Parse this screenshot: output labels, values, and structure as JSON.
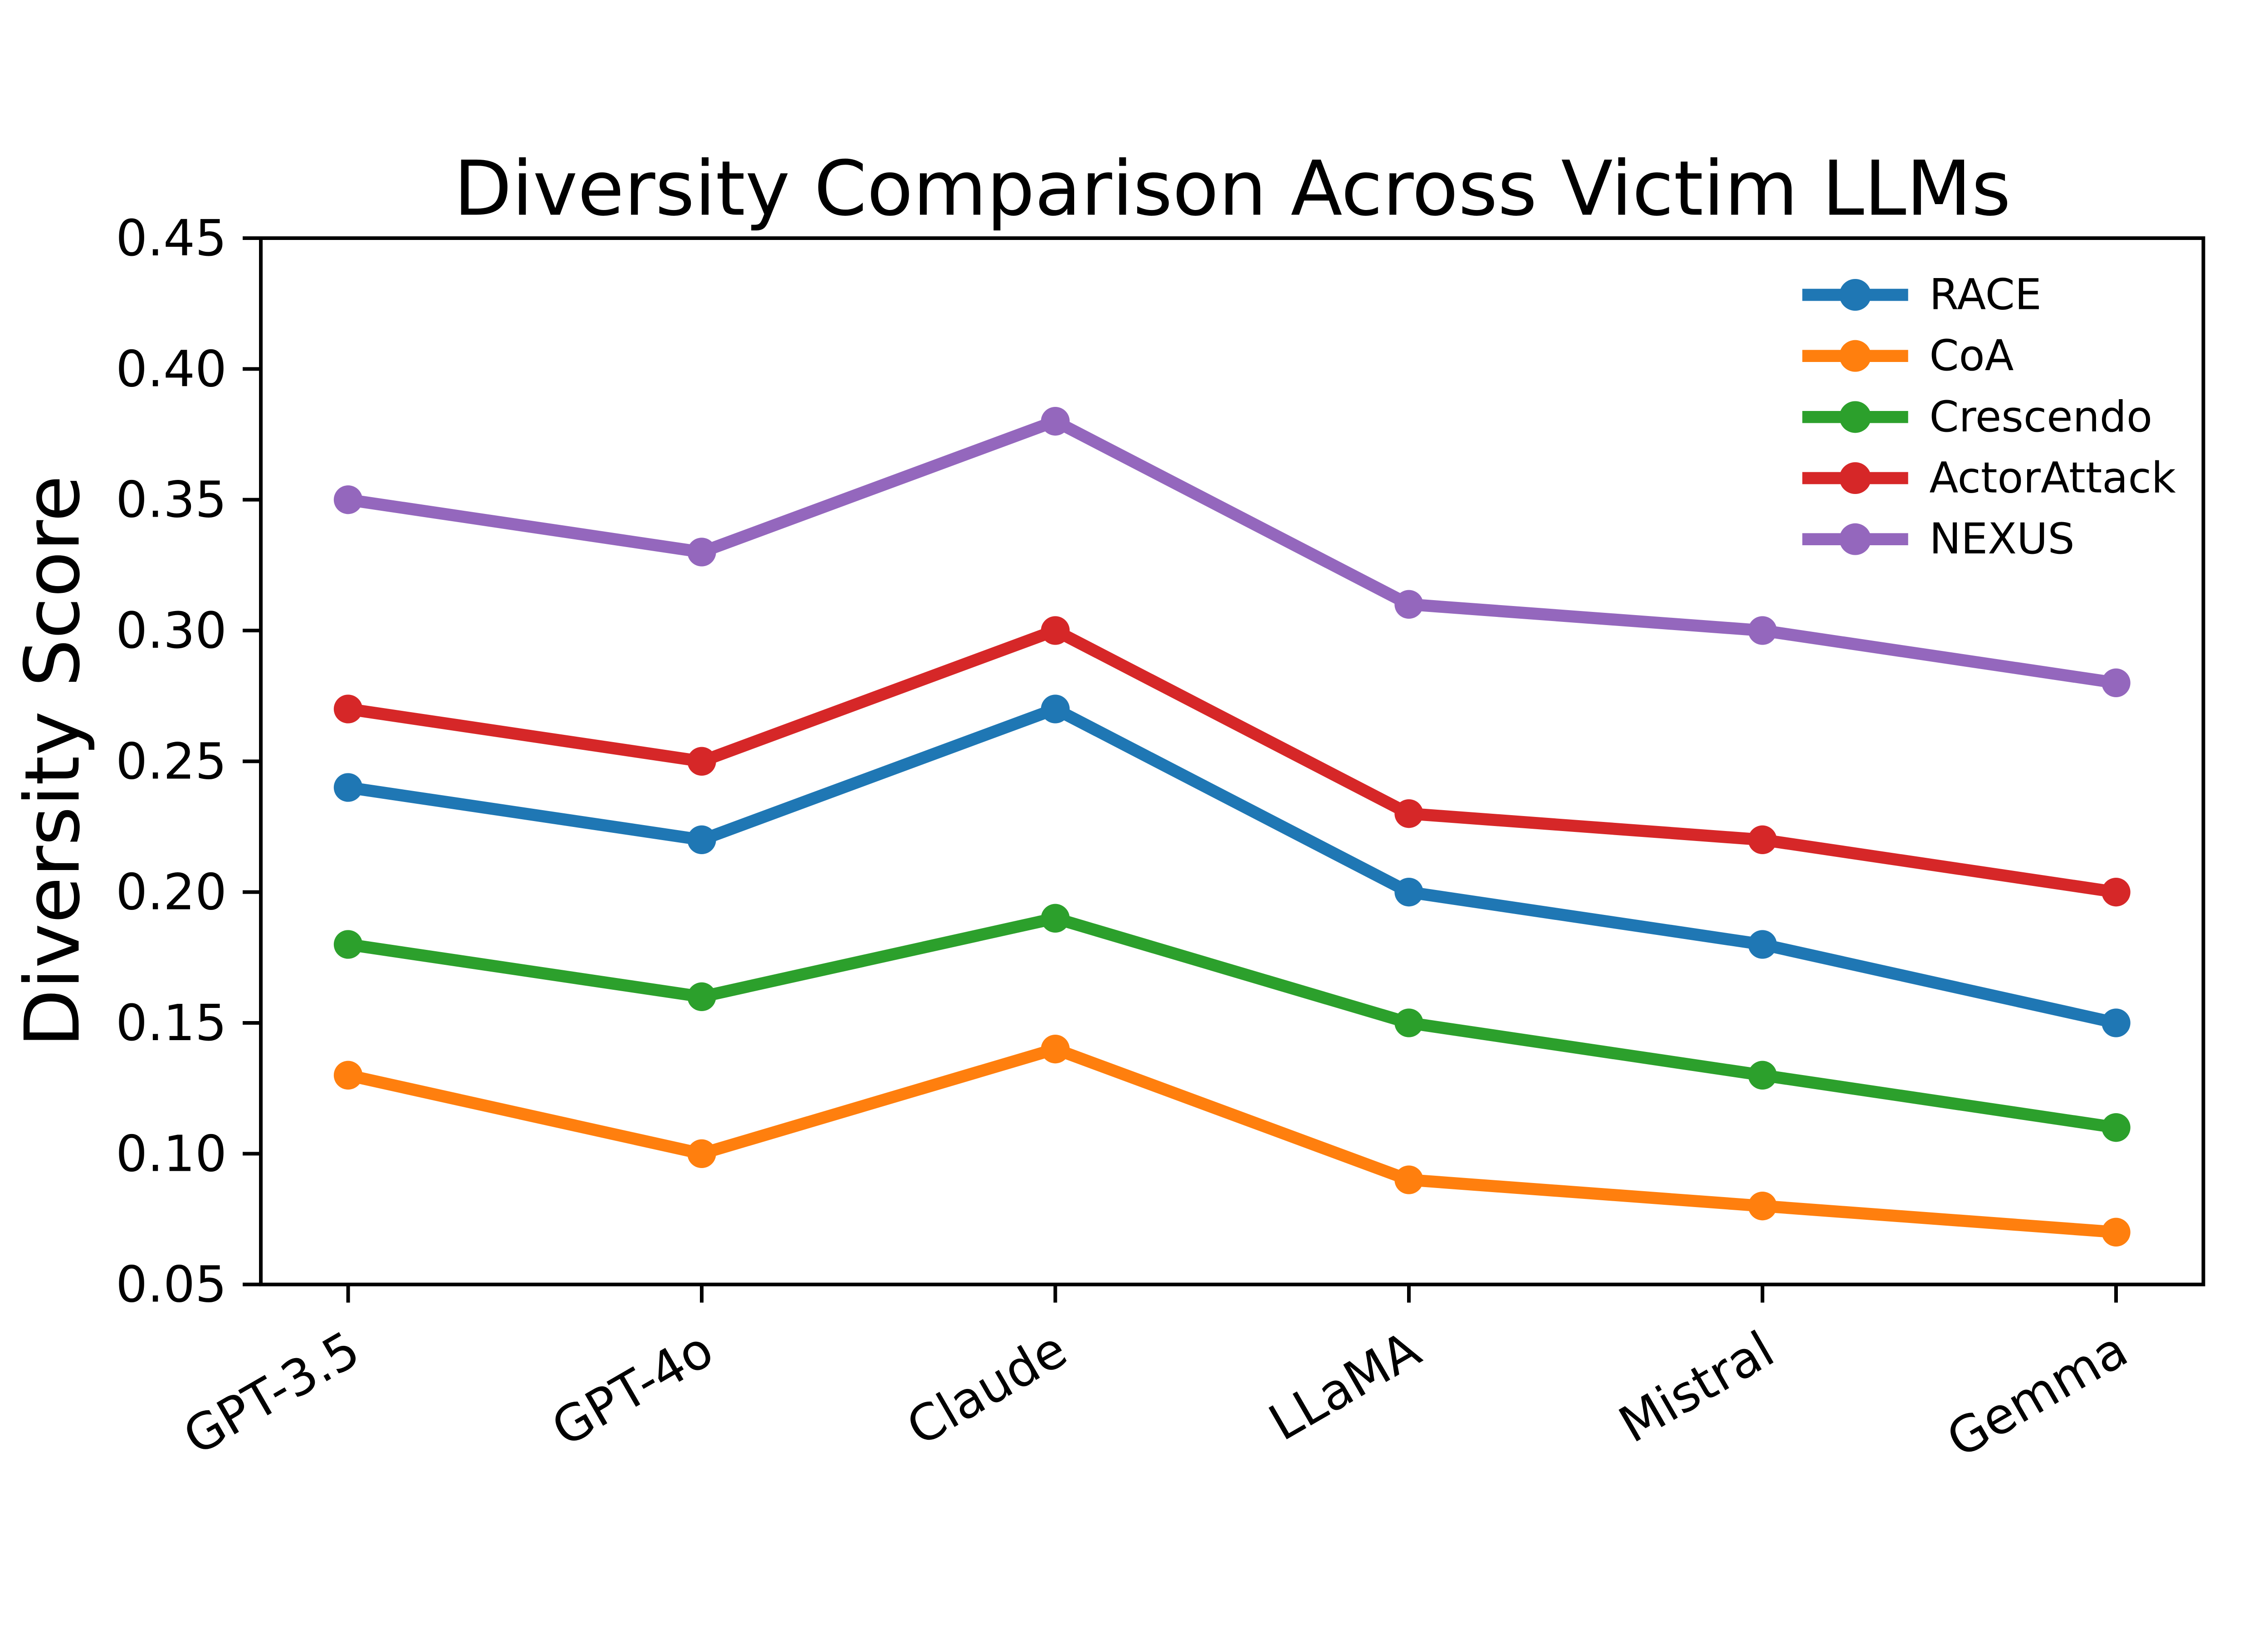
{
  "figure": {
    "background": "#ffffff",
    "text_color": "#000000"
  },
  "chart_data": {
    "type": "line",
    "title": "Diversity Comparison Across Victim LLMs",
    "xlabel": "",
    "ylabel": "Diversity Score",
    "categories": [
      "GPT-3.5",
      "GPT-4o",
      "Claude",
      "LLaMA",
      "Mistral",
      "Gemma"
    ],
    "series": [
      {
        "name": "RACE",
        "color": "#1f77b4",
        "values": [
          0.24,
          0.22,
          0.27,
          0.2,
          0.18,
          0.15
        ]
      },
      {
        "name": "CoA",
        "color": "#ff7f0e",
        "values": [
          0.13,
          0.1,
          0.14,
          0.09,
          0.08,
          0.07
        ]
      },
      {
        "name": "Crescendo",
        "color": "#2ca02c",
        "values": [
          0.18,
          0.16,
          0.19,
          0.15,
          0.13,
          0.11
        ]
      },
      {
        "name": "ActorAttack",
        "color": "#d62728",
        "values": [
          0.27,
          0.25,
          0.3,
          0.23,
          0.22,
          0.2
        ]
      },
      {
        "name": "NEXUS",
        "color": "#9467bd",
        "values": [
          0.35,
          0.33,
          0.38,
          0.31,
          0.3,
          0.28
        ]
      }
    ],
    "ylim": [
      0.05,
      0.45
    ],
    "yticks": [
      0.05,
      0.1,
      0.15,
      0.2,
      0.25,
      0.3,
      0.35,
      0.4,
      0.45
    ],
    "ytick_labels": [
      "0.05",
      "0.10",
      "0.15",
      "0.20",
      "0.25",
      "0.30",
      "0.35",
      "0.40",
      "0.45"
    ],
    "xtick_rotation_deg": 30,
    "grid": false,
    "legend_position": "upper right",
    "marker": "o"
  }
}
